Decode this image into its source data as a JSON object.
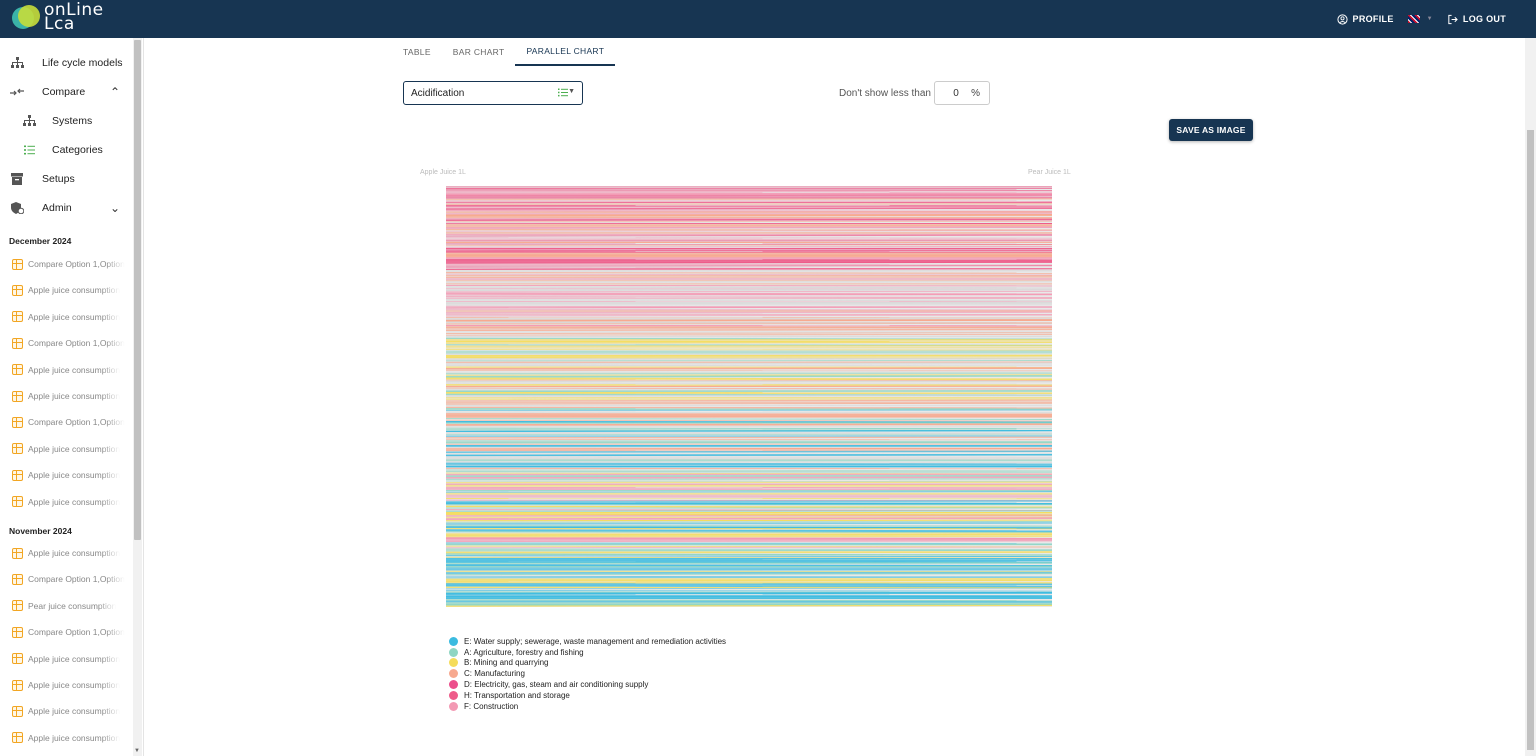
{
  "app": {
    "logo_line1": "onLine",
    "logo_line2": "Lca"
  },
  "header": {
    "profile_label": "PROFILE",
    "logout_label": "LOG OUT"
  },
  "sidebar": {
    "nav": [
      {
        "label": "Life cycle models",
        "icon": "hierarchy-icon"
      },
      {
        "label": "Compare",
        "icon": "compare-arrows-icon",
        "expanded": true
      },
      {
        "label": "Systems",
        "icon": "hierarchy-icon",
        "sub": true
      },
      {
        "label": "Categories",
        "icon": "list-icon",
        "sub": true
      },
      {
        "label": "Setups",
        "icon": "archive-icon"
      },
      {
        "label": "Admin",
        "icon": "admin-shield-icon",
        "expanded": false
      }
    ],
    "history": [
      {
        "heading": "December 2024",
        "items": [
          "Compare Option 1,Option",
          "Apple juice consumption",
          "Apple juice consumption",
          "Compare Option 1,Option",
          "Apple juice consumption",
          "Apple juice consumption",
          "Compare Option 1,Option",
          "Apple juice consumption",
          "Apple juice consumption",
          "Apple juice consumption"
        ]
      },
      {
        "heading": "November 2024",
        "items": [
          "Apple juice consumption",
          "Compare Option 1,Option",
          "Pear juice consumption",
          "Compare Option 1,Option",
          "Apple juice consumption",
          "Apple juice consumption",
          "Apple juice consumption",
          "Apple juice consumption"
        ]
      }
    ]
  },
  "tabs": [
    {
      "label": "TABLE",
      "active": false
    },
    {
      "label": "BAR CHART",
      "active": false
    },
    {
      "label": "PARALLEL CHART",
      "active": true
    }
  ],
  "controls": {
    "category_value": "Acidification",
    "threshold_label": "Don't show less than",
    "threshold_value": "0",
    "threshold_unit": "%",
    "save_label": "SAVE AS IMAGE"
  },
  "chart_data": {
    "type": "parallel",
    "axes": [
      "Apple Juice 1L",
      "Pear Juice 1L"
    ],
    "legend": [
      {
        "name": "E: Water supply; sewerage, waste management and remediation activities",
        "color": "#3bbbe0"
      },
      {
        "name": "A: Agriculture, forestry and fishing",
        "color": "#8fd6c3"
      },
      {
        "name": "B: Mining and quarrying",
        "color": "#f5dc5a"
      },
      {
        "name": "C: Manufacturing",
        "color": "#f7a98f"
      },
      {
        "name": "D: Electricity, gas, steam and air conditioning supply",
        "color": "#ec4f8c"
      },
      {
        "name": "H: Transportation and storage",
        "color": "#ee5c8a"
      },
      {
        "name": "F: Construction",
        "color": "#f39ab4"
      }
    ],
    "bands": [
      {
        "colors": [
          "#f39ab4",
          "#ee5c8a",
          "#f7a98f"
        ],
        "weight": 20
      },
      {
        "colors": [
          "#f7a98f",
          "#f39ab4",
          "#d9d9d9"
        ],
        "weight": 16
      },
      {
        "colors": [
          "#f7a98f",
          "#f5dc5a",
          "#8fd6c3",
          "#d9d9d9"
        ],
        "weight": 16
      },
      {
        "colors": [
          "#8fd6c3",
          "#3bbbe0",
          "#d9d9d9",
          "#f7a98f"
        ],
        "weight": 16
      },
      {
        "colors": [
          "#8fd6c3",
          "#3bbbe0",
          "#f39ab4",
          "#f5dc5a"
        ],
        "weight": 20
      },
      {
        "colors": [
          "#3bbbe0",
          "#8fd6c3",
          "#f5dc5a"
        ],
        "weight": 12
      }
    ]
  }
}
